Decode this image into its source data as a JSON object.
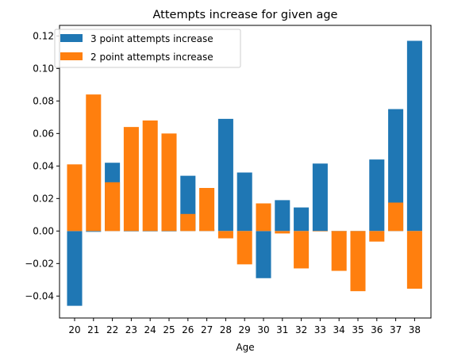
{
  "chart_data": {
    "type": "bar",
    "title": "Attempts increase for given age",
    "xlabel": "Age",
    "ylabel": "",
    "categories": [
      "20",
      "21",
      "22",
      "23",
      "24",
      "25",
      "26",
      "27",
      "28",
      "29",
      "30",
      "31",
      "32",
      "33",
      "34",
      "35",
      "36",
      "37",
      "38"
    ],
    "ylim": [
      -0.0535,
      0.1265
    ],
    "yticks": [
      -0.04,
      -0.02,
      0.0,
      0.02,
      0.04,
      0.06,
      0.08,
      0.1,
      0.12
    ],
    "ytick_labels": [
      "−0.04",
      "−0.02",
      "0.00",
      "0.02",
      "0.04",
      "0.06",
      "0.08",
      "0.10",
      "0.12"
    ],
    "legend": "top-left",
    "grid": false,
    "series": [
      {
        "name": "3 point attempts increase",
        "color": "#1f77b4",
        "values": [
          -0.046,
          -0.0005,
          0.042,
          0.0,
          0.0,
          0.0,
          0.034,
          0.001,
          0.069,
          0.036,
          -0.029,
          0.019,
          0.0145,
          0.0415,
          -0.0005,
          -0.0005,
          0.044,
          0.075,
          0.117
        ]
      },
      {
        "name": "2 point attempts increase",
        "color": "#ff7f0e",
        "values": [
          0.041,
          0.084,
          0.03,
          0.064,
          0.068,
          0.06,
          0.0105,
          0.0265,
          -0.0045,
          -0.0205,
          0.017,
          -0.0015,
          -0.023,
          0.0,
          -0.0245,
          -0.037,
          -0.0065,
          0.0175,
          -0.0355
        ]
      }
    ]
  }
}
